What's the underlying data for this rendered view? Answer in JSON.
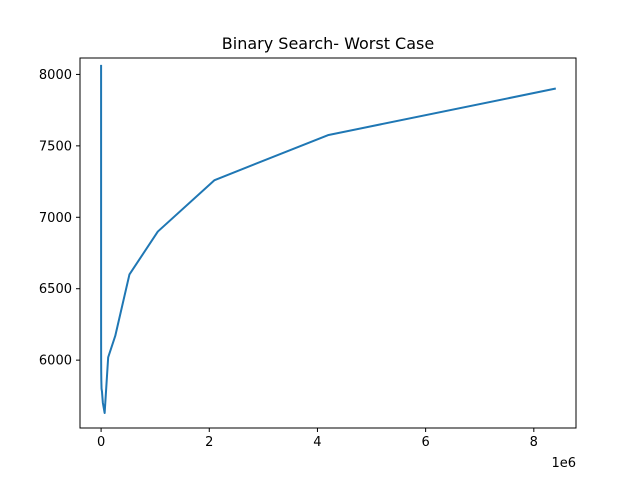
{
  "chart_data": {
    "type": "line",
    "title": "Binary Search- Worst Case",
    "xlabel": "",
    "ylabel": "",
    "x_offset_label": "1e6",
    "xlim": [
      -390000,
      8780000
    ],
    "ylim": [
      5525,
      8115
    ],
    "x_ticks": [
      {
        "value": 0,
        "label": "0"
      },
      {
        "value": 2000000,
        "label": "2"
      },
      {
        "value": 4000000,
        "label": "4"
      },
      {
        "value": 6000000,
        "label": "6"
      },
      {
        "value": 8000000,
        "label": "8"
      }
    ],
    "y_ticks": [
      {
        "value": 6000,
        "label": "6000"
      },
      {
        "value": 6500,
        "label": "6500"
      },
      {
        "value": 7000,
        "label": "7000"
      },
      {
        "value": 7500,
        "label": "7500"
      },
      {
        "value": 8000,
        "label": "8000"
      }
    ],
    "grid": false,
    "legend": "none",
    "series": [
      {
        "color": "#1f77b4",
        "x": [
          1,
          2,
          4,
          8,
          16,
          32,
          64,
          128,
          256,
          512,
          1024,
          2048,
          4096,
          8192,
          16384,
          32768,
          65536,
          131072,
          262144,
          524288,
          1048576,
          2097152,
          4194304,
          8388608
        ],
        "y": [
          8060,
          7600,
          7300,
          7100,
          6900,
          6700,
          6500,
          6350,
          6200,
          6100,
          6000,
          5920,
          5860,
          5800,
          5780,
          5700,
          5630,
          6020,
          6170,
          6600,
          6900,
          7260,
          7575,
          7900
        ]
      }
    ]
  }
}
